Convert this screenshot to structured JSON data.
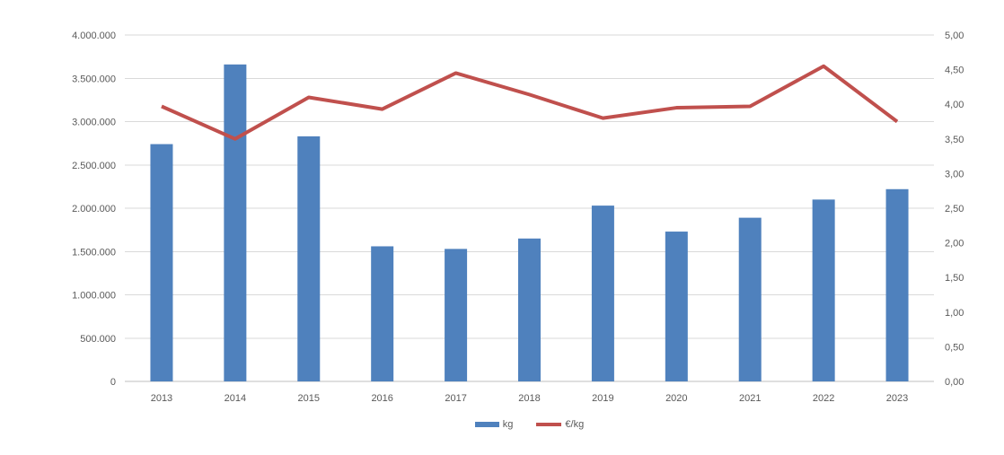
{
  "chart_data": {
    "type": "bar",
    "subtype": "bar-and-line-combo",
    "title": "",
    "categories": [
      "2013",
      "2014",
      "2015",
      "2016",
      "2017",
      "2018",
      "2019",
      "2020",
      "2021",
      "2022",
      "2023"
    ],
    "series": [
      {
        "name": "kg",
        "type": "bar",
        "axis": "left",
        "color": "#4F81BD",
        "values": [
          2740000,
          3660000,
          2830000,
          1560000,
          1530000,
          1650000,
          2030000,
          1730000,
          1890000,
          2100000,
          2220000
        ]
      },
      {
        "name": "€/kg",
        "type": "line",
        "axis": "right",
        "color": "#C0504D",
        "values": [
          3.97,
          3.5,
          4.1,
          3.93,
          4.45,
          4.14,
          3.8,
          3.95,
          3.97,
          4.55,
          3.75
        ]
      }
    ],
    "left_axis": {
      "min": 0,
      "max": 4000000,
      "step": 500000,
      "tick_labels": [
        "0",
        "500.000",
        "1.000.000",
        "1.500.000",
        "2.000.000",
        "2.500.000",
        "3.000.000",
        "3.500.000",
        "4.000.000"
      ]
    },
    "right_axis": {
      "min": 0,
      "max": 5,
      "step": 0.5,
      "tick_labels": [
        "0,00",
        "0,50",
        "1,00",
        "1,50",
        "2,00",
        "2,50",
        "3,00",
        "3,50",
        "4,00",
        "4,50",
        "5,00"
      ]
    },
    "legend": {
      "position": "bottom",
      "items": [
        "kg",
        "€/kg"
      ]
    },
    "grid": true,
    "colors": {
      "background": "#FFFFFF",
      "gridline": "#D9D9D9",
      "axis_line": "#BFBFBF",
      "text": "#595959"
    }
  }
}
